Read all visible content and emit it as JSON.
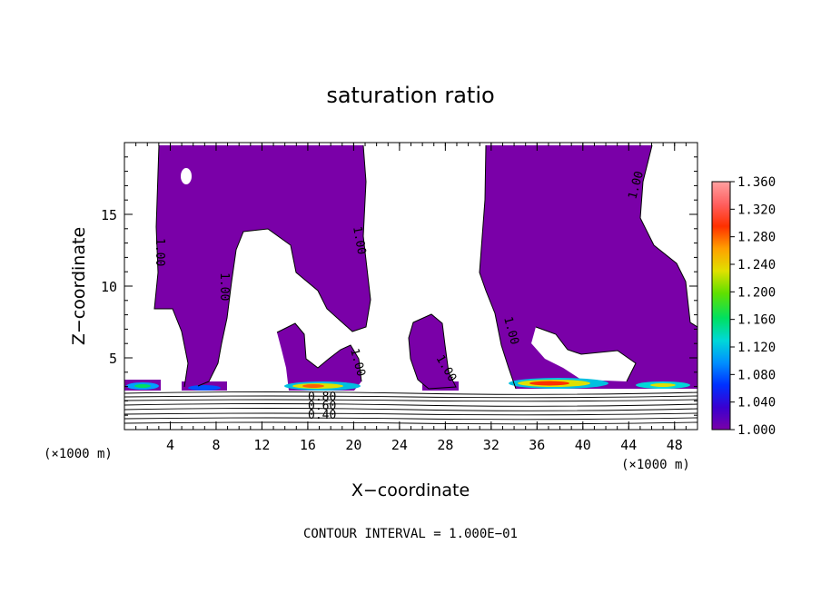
{
  "chart_data": {
    "type": "heatmap",
    "title": "saturation ratio",
    "xlabel": "X−coordinate",
    "ylabel": "Z−coordinate",
    "x_unit": "(×1000 m)",
    "x_unit_right": "(×1000 m)",
    "xlim": [
      0,
      50
    ],
    "ylim": [
      0,
      20
    ],
    "x_ticks": [
      4,
      8,
      12,
      16,
      20,
      24,
      28,
      32,
      36,
      40,
      44,
      48
    ],
    "y_ticks": [
      5,
      10,
      15
    ],
    "colorbar": {
      "min": 1.0,
      "max": 1.36,
      "labels": [
        "1.360",
        "1.320",
        "1.280",
        "1.240",
        "1.200",
        "1.160",
        "1.120",
        "1.080",
        "1.040",
        "1.000"
      ]
    },
    "contour_labels": [
      "1.00",
      "1.00",
      "1.00",
      "1.00",
      "1.00",
      "1.00",
      "1.00",
      "0.80",
      "0.60",
      "0.40"
    ],
    "footer": "CONTOUR INTERVAL = 1.000E−01",
    "colors": {
      "base": "#7a00a8",
      "scale": [
        "#7a00a8",
        "#3a00d0",
        "#0030ff",
        "#0090ff",
        "#00d8d8",
        "#00e060",
        "#60e000",
        "#e0e000",
        "#ffa000",
        "#ff3000",
        "#ff6060",
        "#ffa0a0"
      ]
    }
  }
}
